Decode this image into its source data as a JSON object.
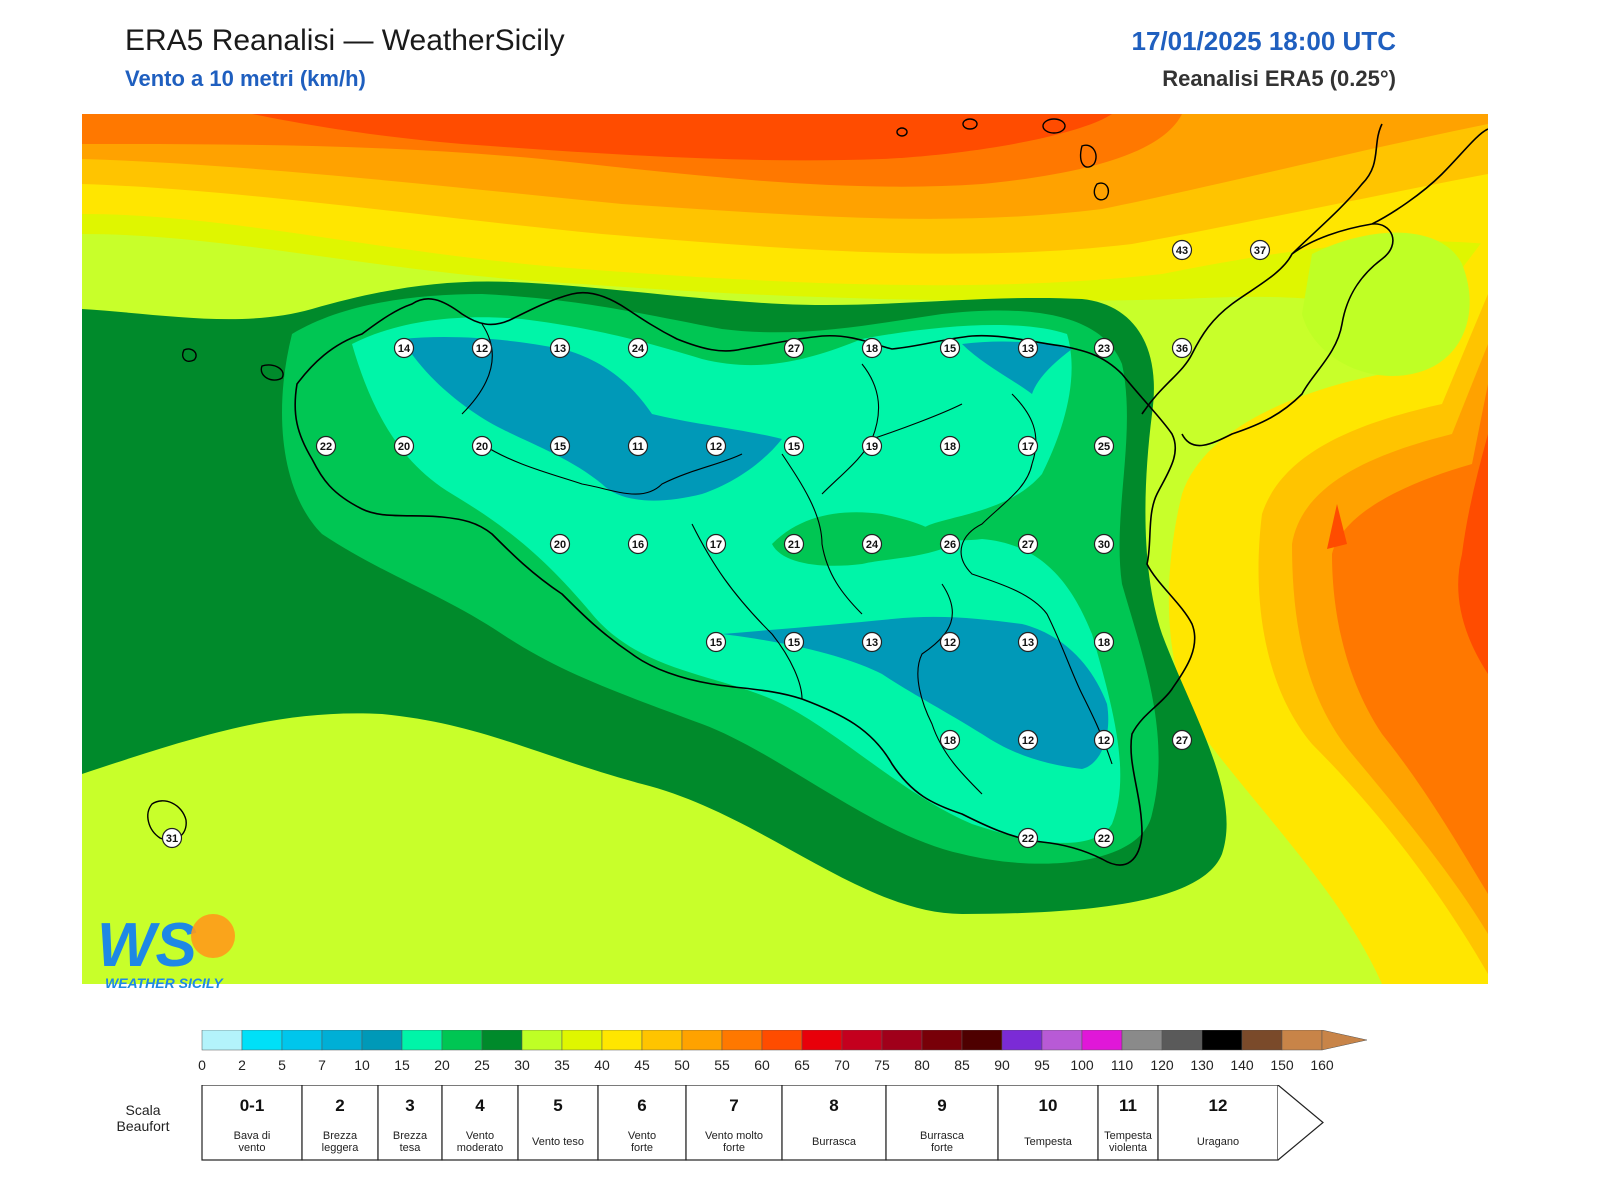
{
  "header": {
    "title": "ERA5 Reanalisi — WeatherSicily",
    "subtitle": "Vento a 10 metri (km/h)",
    "datetime": "17/01/2025 18:00 UTC",
    "source": "Reanalisi ERA5 (0.25°)"
  },
  "logo": {
    "text": "WEATHER SICILY",
    "initials": "WS",
    "icon": "weather-sicily-logo"
  },
  "stations": [
    {
      "v": "14"
    },
    {
      "v": "12"
    },
    {
      "v": "13"
    },
    {
      "v": "24"
    },
    {
      "v": "27"
    },
    {
      "v": "18"
    },
    {
      "v": "15"
    },
    {
      "v": "13"
    },
    {
      "v": "23"
    },
    {
      "v": "36"
    },
    {
      "v": "22"
    },
    {
      "v": "20"
    },
    {
      "v": "20"
    },
    {
      "v": "15"
    },
    {
      "v": "11"
    },
    {
      "v": "12"
    },
    {
      "v": "15"
    },
    {
      "v": "19"
    },
    {
      "v": "18"
    },
    {
      "v": "17"
    },
    {
      "v": "25"
    },
    {
      "v": "20"
    },
    {
      "v": "16"
    },
    {
      "v": "17"
    },
    {
      "v": "21"
    },
    {
      "v": "24"
    },
    {
      "v": "26"
    },
    {
      "v": "27"
    },
    {
      "v": "30"
    },
    {
      "v": "15"
    },
    {
      "v": "15"
    },
    {
      "v": "13"
    },
    {
      "v": "12"
    },
    {
      "v": "13"
    },
    {
      "v": "18"
    },
    {
      "v": "18"
    },
    {
      "v": "12"
    },
    {
      "v": "12"
    },
    {
      "v": "27"
    },
    {
      "v": "22"
    },
    {
      "v": "22"
    },
    {
      "v": "43"
    },
    {
      "v": "37"
    },
    {
      "v": "31"
    }
  ],
  "colorbar": {
    "ticks": [
      "0",
      "2",
      "5",
      "7",
      "10",
      "15",
      "20",
      "25",
      "30",
      "35",
      "40",
      "45",
      "50",
      "55",
      "60",
      "65",
      "70",
      "75",
      "80",
      "85",
      "90",
      "95",
      "100",
      "110",
      "120",
      "130",
      "140",
      "150",
      "160"
    ],
    "colors": [
      "#b3f3fb",
      "#00e0f8",
      "#00c6ec",
      "#00afd6",
      "#0099b8",
      "#00f5a8",
      "#00c653",
      "#008a2b",
      "#bfff25",
      "#dff600",
      "#ffe600",
      "#ffc400",
      "#ffa200",
      "#ff7800",
      "#ff4c00",
      "#e8000a",
      "#c4001e",
      "#a0001a",
      "#780008",
      "#4e0000",
      "#7b2bd6",
      "#b85ad6",
      "#e017d8",
      "#8a8a8a",
      "#5a5a5a",
      "#000000",
      "#7a4a2a",
      "#c88448"
    ]
  },
  "beaufort": {
    "label_line1": "Scala",
    "label_line2": "Beaufort",
    "classes": [
      {
        "n": "0-1",
        "d1": "Bava di",
        "d2": "vento"
      },
      {
        "n": "2",
        "d1": "Brezza",
        "d2": "leggera"
      },
      {
        "n": "3",
        "d1": "Brezza",
        "d2": "tesa"
      },
      {
        "n": "4",
        "d1": "Vento",
        "d2": "moderato"
      },
      {
        "n": "5",
        "d1": "Vento teso",
        "d2": ""
      },
      {
        "n": "6",
        "d1": "Vento",
        "d2": "forte"
      },
      {
        "n": "7",
        "d1": "Vento molto",
        "d2": "forte"
      },
      {
        "n": "8",
        "d1": "Burrasca",
        "d2": ""
      },
      {
        "n": "9",
        "d1": "Burrasca",
        "d2": "forte"
      },
      {
        "n": "10",
        "d1": "Tempesta",
        "d2": ""
      },
      {
        "n": "11",
        "d1": "Tempesta",
        "d2": "violenta"
      },
      {
        "n": "12",
        "d1": "Uragano",
        "d2": ""
      }
    ]
  }
}
